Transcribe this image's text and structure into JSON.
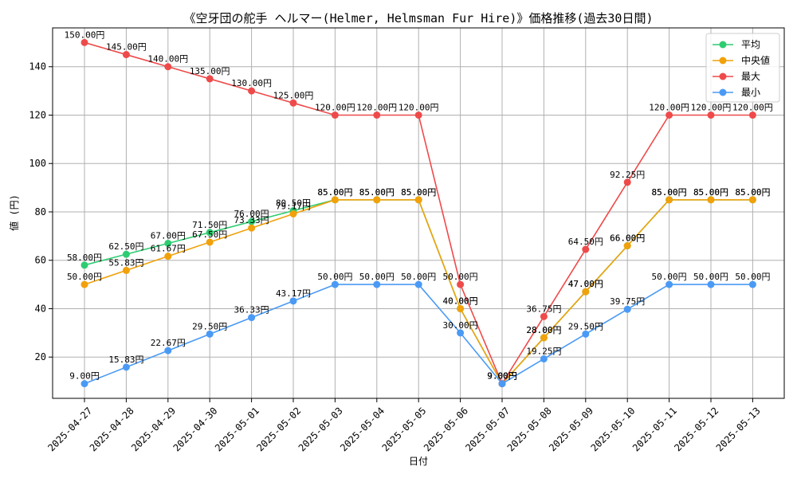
{
  "chart_data": {
    "type": "line",
    "title": "《空牙団の舵手 ヘルマー(Helmer, Helmsman Fur Hire)》価格推移(過去30日間)",
    "xlabel": "日付",
    "ylabel": "値 (円)",
    "ylim": [
      2.95,
      156.05
    ],
    "yticks": [
      20,
      40,
      60,
      80,
      100,
      120,
      140
    ],
    "grid": true,
    "legend_position": "top-right",
    "label_suffix": "円",
    "categories": [
      "2025-04-27",
      "2025-04-28",
      "2025-04-29",
      "2025-04-30",
      "2025-05-01",
      "2025-05-02",
      "2025-05-03",
      "2025-05-04",
      "2025-05-05",
      "2025-05-06",
      "2025-05-07",
      "2025-05-08",
      "2025-05-09",
      "2025-05-10",
      "2025-05-11",
      "2025-05-12",
      "2025-05-13"
    ],
    "series": [
      {
        "name": "平均",
        "color": "#2ecc71",
        "values": [
          58.0,
          62.5,
          67.0,
          71.5,
          76.0,
          80.5,
          85.0,
          85.0,
          85.0,
          40.0,
          9.0,
          28.0,
          47.0,
          66.0,
          85.0,
          85.0,
          85.0
        ]
      },
      {
        "name": "中央値",
        "color": "#f1a10a",
        "values": [
          50.0,
          55.83,
          61.67,
          67.5,
          73.33,
          79.17,
          85.0,
          85.0,
          85.0,
          40.0,
          9.0,
          28.0,
          47.0,
          66.0,
          85.0,
          85.0,
          85.0
        ]
      },
      {
        "name": "最大",
        "color": "#ef4a4a",
        "values": [
          150.0,
          145.0,
          140.0,
          135.0,
          130.0,
          125.0,
          120.0,
          120.0,
          120.0,
          50.0,
          9.0,
          36.75,
          64.5,
          92.25,
          120.0,
          120.0,
          120.0
        ]
      },
      {
        "name": "最小",
        "color": "#4a9af5",
        "values": [
          9.0,
          15.83,
          22.67,
          29.5,
          36.33,
          43.17,
          50.0,
          50.0,
          50.0,
          30.0,
          9.0,
          19.25,
          29.5,
          39.75,
          50.0,
          50.0,
          50.0
        ]
      }
    ]
  }
}
